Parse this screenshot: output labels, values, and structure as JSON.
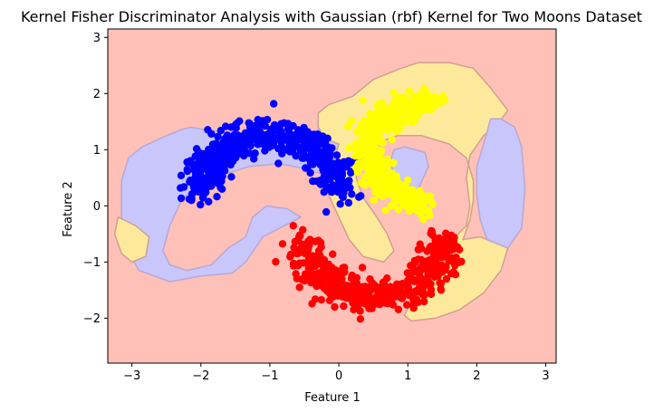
{
  "chart_data": {
    "type": "scatter",
    "title": "Kernel Fisher Discriminator Analysis with Gaussian (rbf) Kernel for Two Moons Dataset",
    "xlabel": "Feature 1",
    "ylabel": "Feature 2",
    "xlim": [
      -3.35,
      3.15
    ],
    "ylim": [
      -2.8,
      3.15
    ],
    "xticks": [
      -3,
      -2,
      -1,
      0,
      1,
      2,
      3
    ],
    "yticks": [
      -2,
      -1,
      0,
      1,
      2,
      3
    ],
    "xtick_labels": [
      "−3",
      "−2",
      "−1",
      "0",
      "1",
      "2",
      "3"
    ],
    "ytick_labels": [
      "−2",
      "−1",
      "0",
      "1",
      "2",
      "3"
    ],
    "background_region_color": "#ffc0b8",
    "regions": [
      {
        "color": "#c9c6fb",
        "stroke": "#b7a8d6",
        "points": [
          [
            -3.15,
            0.45
          ],
          [
            -3.05,
            0.85
          ],
          [
            -2.85,
            1.05
          ],
          [
            -2.5,
            1.25
          ],
          [
            -2.3,
            1.35
          ],
          [
            -2.15,
            1.4
          ],
          [
            -1.9,
            1.35
          ],
          [
            -1.5,
            1.3
          ],
          [
            -1.2,
            1.25
          ],
          [
            -0.7,
            1.15
          ],
          [
            -0.4,
            1.05
          ],
          [
            -0.3,
            1.3
          ],
          [
            -0.3,
            1.6
          ],
          [
            -0.15,
            1.75
          ],
          [
            0.05,
            1.45
          ],
          [
            0.05,
            0.7
          ],
          [
            -0.2,
            0.55
          ],
          [
            -0.45,
            0.65
          ],
          [
            -0.85,
            0.75
          ],
          [
            -1.3,
            0.7
          ],
          [
            -1.7,
            0.55
          ],
          [
            -2.1,
            0.35
          ],
          [
            -2.3,
            0.05
          ],
          [
            -2.45,
            -0.35
          ],
          [
            -2.55,
            -0.8
          ],
          [
            -2.45,
            -1.05
          ],
          [
            -2.2,
            -1.15
          ],
          [
            -1.85,
            -1.05
          ],
          [
            -1.6,
            -0.75
          ],
          [
            -1.35,
            -0.55
          ],
          [
            -1.25,
            -0.2
          ],
          [
            -1.05,
            0.0
          ],
          [
            -0.75,
            -0.05
          ],
          [
            -0.55,
            -0.2
          ],
          [
            -1.1,
            -0.55
          ],
          [
            -1.35,
            -1.0
          ],
          [
            -1.55,
            -1.2
          ],
          [
            -2.0,
            -1.25
          ],
          [
            -2.45,
            -1.35
          ],
          [
            -2.9,
            -1.15
          ],
          [
            -3.1,
            -0.7
          ],
          [
            -3.15,
            -0.2
          ]
        ]
      },
      {
        "color": "#fde99c",
        "stroke": "#d0a090",
        "points": [
          [
            -3.2,
            -0.2
          ],
          [
            -2.95,
            -0.35
          ],
          [
            -2.75,
            -0.55
          ],
          [
            -2.8,
            -0.9
          ],
          [
            -3.0,
            -1.0
          ],
          [
            -3.15,
            -0.85
          ],
          [
            -3.25,
            -0.5
          ]
        ]
      },
      {
        "color": "#fde99c",
        "stroke": "#d0a090",
        "points": [
          [
            -0.3,
            1.65
          ],
          [
            -0.15,
            1.8
          ],
          [
            0.2,
            1.95
          ],
          [
            0.5,
            2.25
          ],
          [
            0.9,
            2.45
          ],
          [
            1.15,
            2.55
          ],
          [
            1.6,
            2.55
          ],
          [
            1.95,
            2.45
          ],
          [
            2.2,
            2.1
          ],
          [
            2.45,
            1.7
          ],
          [
            2.3,
            1.45
          ],
          [
            2.1,
            1.25
          ],
          [
            1.9,
            0.9
          ],
          [
            1.85,
            0.5
          ],
          [
            1.9,
            0.0
          ],
          [
            1.85,
            -0.35
          ],
          [
            1.65,
            -0.6
          ],
          [
            1.5,
            -1.05
          ],
          [
            1.3,
            -1.4
          ],
          [
            1.05,
            -1.7
          ],
          [
            0.95,
            -1.95
          ],
          [
            1.05,
            -2.05
          ],
          [
            1.4,
            -2.0
          ],
          [
            1.75,
            -1.85
          ],
          [
            2.1,
            -1.55
          ],
          [
            2.35,
            -1.15
          ],
          [
            2.45,
            -0.75
          ],
          [
            2.05,
            -0.55
          ],
          [
            1.8,
            -0.6
          ],
          [
            1.9,
            -0.25
          ],
          [
            1.95,
            0.1
          ],
          [
            1.95,
            0.45
          ],
          [
            1.85,
            0.85
          ],
          [
            1.6,
            1.1
          ],
          [
            1.2,
            1.25
          ],
          [
            0.85,
            1.25
          ],
          [
            0.5,
            1.1
          ],
          [
            0.3,
            0.9
          ],
          [
            0.25,
            0.5
          ],
          [
            0.35,
            0.15
          ],
          [
            0.55,
            -0.2
          ],
          [
            0.7,
            -0.5
          ],
          [
            0.8,
            -0.8
          ],
          [
            0.65,
            -1.0
          ],
          [
            0.35,
            -0.9
          ],
          [
            0.15,
            -0.6
          ],
          [
            0.0,
            -0.2
          ],
          [
            -0.15,
            0.2
          ],
          [
            -0.1,
            0.7
          ],
          [
            0.0,
            1.1
          ],
          [
            -0.2,
            1.2
          ],
          [
            -0.3,
            1.4
          ]
        ]
      },
      {
        "color": "#c9c6fb",
        "stroke": "#b7a8d6",
        "points": [
          [
            0.8,
            1.0
          ],
          [
            0.95,
            1.05
          ],
          [
            1.25,
            0.95
          ],
          [
            1.3,
            0.7
          ],
          [
            1.15,
            0.3
          ],
          [
            1.0,
            0.25
          ],
          [
            0.8,
            0.55
          ],
          [
            0.75,
            0.8
          ]
        ]
      },
      {
        "color": "#c9c6fb",
        "stroke": "#b7a8d6",
        "points": [
          [
            2.2,
            1.55
          ],
          [
            2.35,
            1.55
          ],
          [
            2.55,
            1.4
          ],
          [
            2.65,
            1.05
          ],
          [
            2.7,
            0.3
          ],
          [
            2.65,
            -0.4
          ],
          [
            2.45,
            -0.75
          ],
          [
            2.15,
            -0.6
          ],
          [
            2.05,
            -0.25
          ],
          [
            2.0,
            0.2
          ],
          [
            2.0,
            0.7
          ],
          [
            2.1,
            1.1
          ]
        ]
      }
    ],
    "series": [
      {
        "color": "#0000ff",
        "center": [
          -1.0,
          0.25
        ],
        "radius": 1.0,
        "angle_range": [
          0,
          180
        ],
        "noise": 0.15,
        "count": 500
      },
      {
        "color": "#ff0000",
        "center": [
          0.5,
          -0.6
        ],
        "radius": 1.0,
        "angle_range": [
          180,
          360
        ],
        "noise": 0.15,
        "count": 500
      },
      {
        "color": "#ffff00",
        "center": [
          1.35,
          0.95
        ],
        "radius": 0.9,
        "angle_range": [
          90,
          265
        ],
        "noise": 0.12,
        "count": 500
      }
    ]
  }
}
